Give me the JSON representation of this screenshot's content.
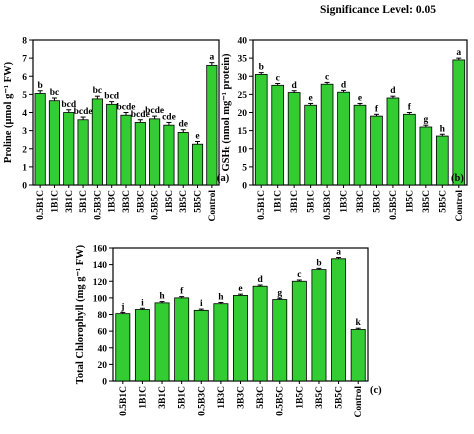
{
  "header": {
    "significance": "Significance Level: 0.05"
  },
  "colors": {
    "bar": "#33cc33",
    "bar_edge": "#000000",
    "axis": "#000000"
  },
  "chart_data": [
    {
      "type": "bar",
      "panel_label": "(a)",
      "ylabel": "Proline (µmol g⁻¹ FW)",
      "ylim": [
        0,
        8
      ],
      "yticks": [
        0,
        1,
        2,
        3,
        4,
        5,
        6,
        7,
        8
      ],
      "categories": [
        "0.5B1C",
        "1B1C",
        "3B1C",
        "5B1C",
        "0.5B3C",
        "1B3C",
        "3B3C",
        "5B3C",
        "0.5B5C",
        "1B5C",
        "3B5C",
        "5B5C",
        "Control"
      ],
      "values": [
        5.05,
        4.65,
        4.0,
        3.6,
        4.75,
        4.45,
        3.85,
        3.45,
        3.65,
        3.3,
        2.9,
        2.25,
        6.6
      ],
      "errors": [
        0.15,
        0.15,
        0.15,
        0.15,
        0.15,
        0.15,
        0.15,
        0.15,
        0.15,
        0.15,
        0.15,
        0.15,
        0.15
      ],
      "sig_letters": [
        "b",
        "bc",
        "bcd",
        "bcde",
        "bc",
        "bcd",
        "bcde",
        "bcde",
        "bcde",
        "cde",
        "de",
        "e",
        "a"
      ]
    },
    {
      "type": "bar",
      "panel_label": "(b)",
      "ylabel": "GSHₜ (nmol mg⁻¹ protein)",
      "ylim": [
        0,
        40
      ],
      "yticks": [
        0,
        5,
        10,
        15,
        20,
        25,
        30,
        35,
        40
      ],
      "categories": [
        "0.5B1C",
        "1B1C",
        "3B1C",
        "5B1C",
        "0.5B3C",
        "1B3C",
        "3B3C",
        "5B3C",
        "0.5B5C",
        "1B5C",
        "3B5C",
        "5B5C",
        "Control"
      ],
      "values": [
        30.5,
        27.5,
        25.5,
        22.0,
        27.8,
        25.6,
        22.0,
        19.0,
        24.0,
        19.5,
        16.0,
        13.5,
        34.5
      ],
      "errors": [
        0.5,
        0.5,
        0.5,
        0.5,
        0.5,
        0.5,
        0.5,
        0.5,
        0.5,
        0.5,
        0.5,
        0.5,
        0.5
      ],
      "sig_letters": [
        "b",
        "c",
        "d",
        "e",
        "c",
        "d",
        "e",
        "f",
        "d",
        "f",
        "g",
        "h",
        "a"
      ]
    },
    {
      "type": "bar",
      "panel_label": "(c)",
      "ylabel": "Total Chlorophyll (mg g⁻¹ FW)",
      "ylim": [
        0,
        160
      ],
      "yticks": [
        0,
        20,
        40,
        60,
        80,
        100,
        120,
        140,
        160
      ],
      "categories": [
        "0.5B1C",
        "1B1C",
        "3B1C",
        "5B1C",
        "0.5B3C",
        "1B3C",
        "3B3C",
        "5B3C",
        "0.5B5C",
        "1B5C",
        "3B5C",
        "5B5C",
        "Control"
      ],
      "values": [
        81,
        86,
        94,
        100,
        85,
        93,
        103,
        114,
        98,
        120,
        134,
        147,
        62
      ],
      "errors": [
        1.5,
        1.5,
        1.5,
        1.5,
        1.5,
        1.5,
        1.5,
        1.5,
        1.5,
        1.5,
        1.5,
        1.5,
        1.5
      ],
      "sig_letters": [
        "j",
        "i",
        "h",
        "f",
        "i",
        "h",
        "e",
        "d",
        "g",
        "c",
        "b",
        "a",
        "k"
      ]
    }
  ]
}
